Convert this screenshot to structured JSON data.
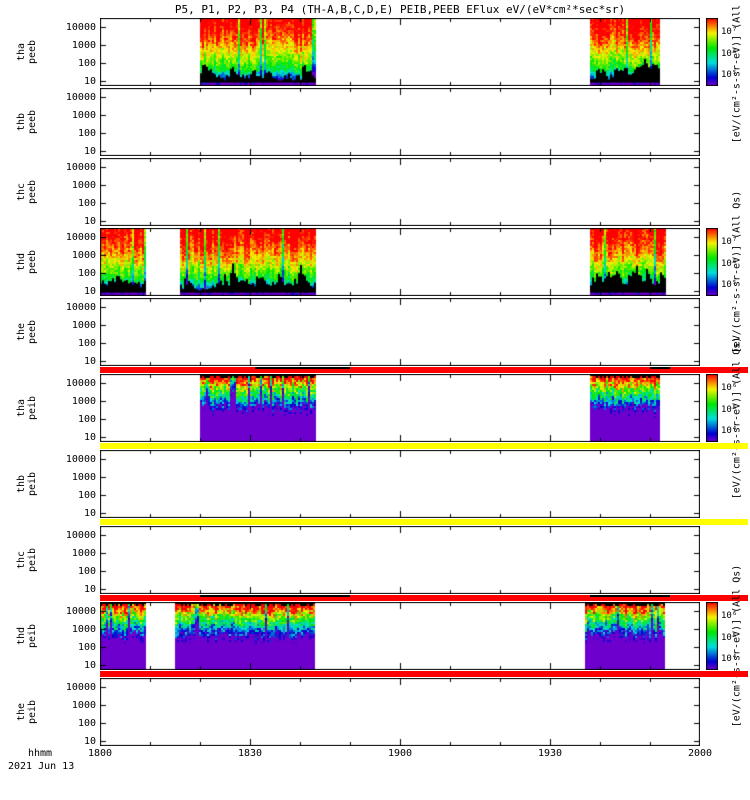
{
  "chart_data": {
    "type": "heatmap",
    "title": "P5, P1, P2, P3, P4 (TH-A,B,C,D,E) PEIB,PEEB EFlux eV/(eV*cm²*sec*sr)",
    "x_axis": {
      "label": "hhmm",
      "date_label": "2021 Jun 13",
      "ticks": [
        "1800",
        "1830",
        "1900",
        "1930",
        "2000"
      ],
      "tick_minutes": [
        0,
        30,
        60,
        90,
        120
      ],
      "range_minutes": 120
    },
    "y_axis": {
      "scale": "log",
      "unit": "eV",
      "tick_labels": [
        "10000",
        "1000",
        "100",
        "10"
      ],
      "tick_fractions_from_top": [
        0.13,
        0.395,
        0.66,
        0.925
      ]
    },
    "colors": {
      "background": "#ffffff",
      "frame": "#000000",
      "flag_red": "#ff0000",
      "flag_yellow": "#ffff00",
      "colorbar_top": "#ff0000",
      "colorbar_bottom": "#5500bb"
    },
    "panels": [
      {
        "label_line1": "tha",
        "label_line2": "peeb",
        "species": "electron",
        "intervals": [
          [
            20,
            43
          ],
          [
            98,
            112
          ]
        ],
        "colorbar": {
          "tick_labels": [
            "10⁷",
            "10⁶",
            "10⁵"
          ],
          "unit_label": "[eV/(cm²-s-sr-eV)] (All Qs)"
        }
      },
      {
        "label_line1": "thb",
        "label_line2": "peeb",
        "species": "electron",
        "intervals": [],
        "colorbar": null
      },
      {
        "label_line1": "thc",
        "label_line2": "peeb",
        "species": "electron",
        "intervals": [],
        "colorbar": null
      },
      {
        "label_line1": "thd",
        "label_line2": "peeb",
        "species": "electron",
        "intervals": [
          [
            0,
            9
          ],
          [
            16,
            43
          ],
          [
            98,
            113
          ]
        ],
        "colorbar": {
          "tick_labels": [
            "10⁷",
            "10⁶",
            "10⁵"
          ],
          "unit_label": "[eV/(cm²-s-sr-eV)] (All Qs)"
        }
      },
      {
        "label_line1": "the",
        "label_line2": "peeb",
        "species": "electron",
        "intervals": [],
        "colorbar": null
      },
      {
        "label_line1": "tha",
        "label_line2": "peib",
        "species": "ion",
        "intervals": [
          [
            20,
            43
          ],
          [
            98,
            112
          ]
        ],
        "colorbar": {
          "tick_labels": [
            "10⁶",
            "10⁵",
            "10⁴"
          ],
          "unit_label": "[eV/(cm²-s-sr-eV)] (All Qs)"
        }
      },
      {
        "label_line1": "thb",
        "label_line2": "peib",
        "species": "ion",
        "intervals": [],
        "colorbar": null
      },
      {
        "label_line1": "thc",
        "label_line2": "peib",
        "species": "ion",
        "intervals": [],
        "colorbar": null
      },
      {
        "label_line1": "thd",
        "label_line2": "peib",
        "species": "ion",
        "intervals": [
          [
            0,
            9
          ],
          [
            15,
            43
          ],
          [
            97,
            113
          ]
        ],
        "colorbar": {
          "tick_labels": [
            "10⁶",
            "10⁵",
            "10⁴"
          ],
          "unit_label": "[eV/(cm²-s-sr-eV)] (All Qs)"
        }
      },
      {
        "label_line1": "the",
        "label_line2": "peib",
        "species": "ion",
        "intervals": [],
        "colorbar": null
      }
    ],
    "flag_bars": [
      {
        "after_panel": 5,
        "color": "#ff0000",
        "black_marks": [
          [
            31,
            50
          ],
          [
            110,
            114
          ]
        ]
      },
      {
        "after_panel": 6,
        "color": "#ffff00",
        "black_marks": []
      },
      {
        "after_panel": 7,
        "color": "#ffff00",
        "black_marks": []
      },
      {
        "after_panel": 8,
        "color": "#ff0000",
        "black_marks": [
          [
            20,
            50
          ],
          [
            98,
            114
          ]
        ]
      },
      {
        "after_panel": 9,
        "color": "#ff0000",
        "black_marks": []
      }
    ]
  }
}
